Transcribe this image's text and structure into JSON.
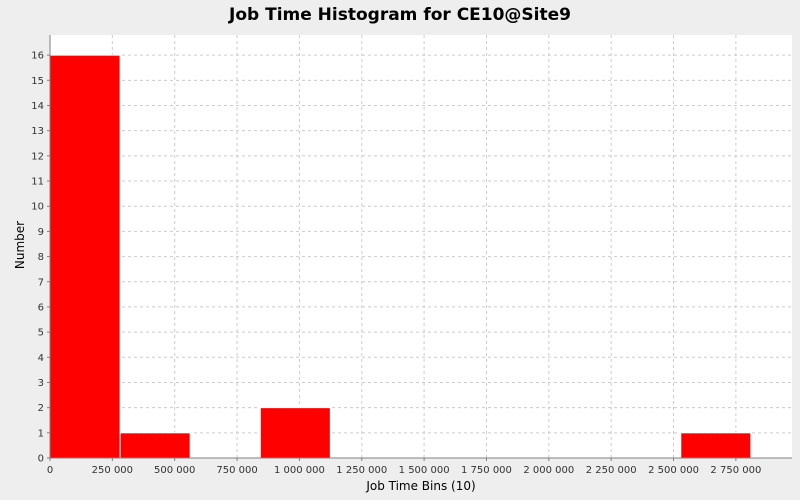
{
  "chart_data": {
    "type": "bar",
    "title": "Job Time Histogram for CE10@Site9",
    "xlabel": "Job Time Bins (10)",
    "ylabel": "Number",
    "xlim": [
      0,
      2975000
    ],
    "ylim": [
      0,
      16.8
    ],
    "x_ticks": [
      0,
      250000,
      500000,
      750000,
      1000000,
      1250000,
      1500000,
      1750000,
      2000000,
      2250000,
      2500000,
      2750000
    ],
    "x_tick_labels": [
      "0",
      "250 000",
      "500 000",
      "750 000",
      "1 000 000",
      "1 250 000",
      "1 500 000",
      "1 750 000",
      "2 000 000",
      "2 250 000",
      "2 500 000",
      "2 750 000"
    ],
    "y_ticks": [
      0,
      1,
      2,
      3,
      4,
      5,
      6,
      7,
      8,
      9,
      10,
      11,
      12,
      13,
      14,
      15,
      16
    ],
    "y_tick_labels": [
      "0",
      "1",
      "2",
      "3",
      "4",
      "5",
      "6",
      "7",
      "8",
      "9",
      "10",
      "11",
      "12",
      "13",
      "14",
      "15",
      "16"
    ],
    "bins": [
      {
        "start": 0,
        "end": 281000,
        "count": 16
      },
      {
        "start": 281000,
        "end": 562000,
        "count": 1
      },
      {
        "start": 562000,
        "end": 843000,
        "count": 0
      },
      {
        "start": 843000,
        "end": 1124000,
        "count": 2
      },
      {
        "start": 1124000,
        "end": 1405000,
        "count": 0
      },
      {
        "start": 1405000,
        "end": 1686000,
        "count": 0
      },
      {
        "start": 1686000,
        "end": 1967000,
        "count": 0
      },
      {
        "start": 1967000,
        "end": 2248000,
        "count": 0
      },
      {
        "start": 2248000,
        "end": 2529000,
        "count": 0
      },
      {
        "start": 2529000,
        "end": 2810000,
        "count": 1
      }
    ],
    "grid": true,
    "colors": {
      "bar": "#ff0000",
      "plot_background": "#ffffff",
      "grid": "#cccccc",
      "page_background": "#eeeeee"
    }
  }
}
